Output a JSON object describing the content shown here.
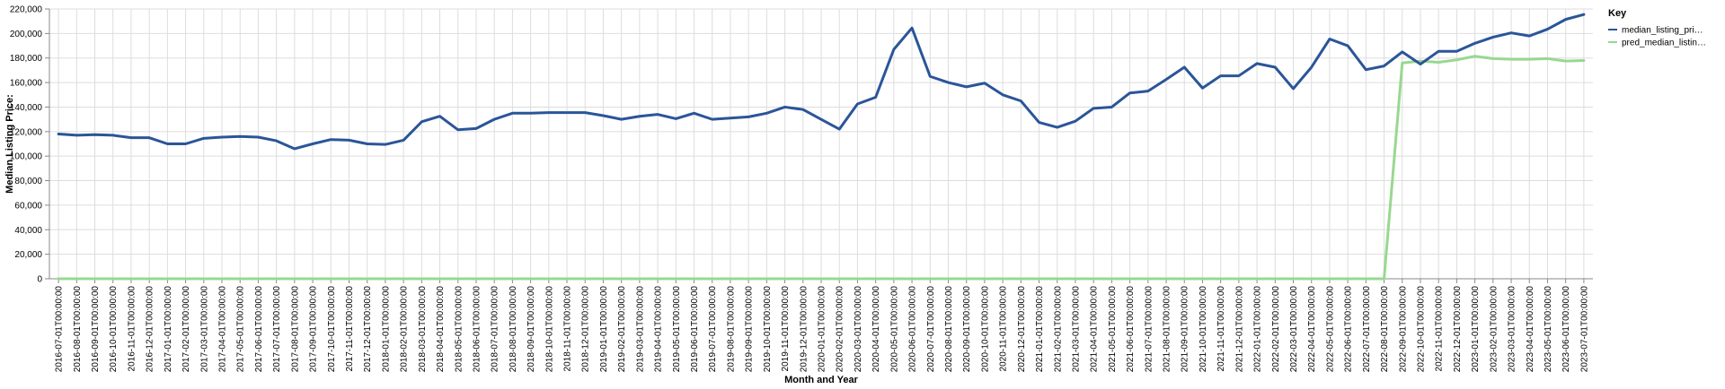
{
  "chart_data": {
    "type": "line",
    "title": "",
    "xlabel": "Month and Year",
    "ylabel": "Median Listing Price:",
    "ylim": [
      0,
      220000
    ],
    "y_ticks": [
      "0",
      "20,000",
      "40,000",
      "60,000",
      "80,000",
      "100,000",
      "120,000",
      "140,000",
      "160,000",
      "180,000",
      "200,000",
      "220,000"
    ],
    "y_tick_values": [
      0,
      20000,
      40000,
      60000,
      80000,
      100000,
      120000,
      140000,
      160000,
      180000,
      200000,
      220000
    ],
    "grid": true,
    "legend": {
      "title": "Key",
      "placement": "right",
      "entries": [
        {
          "label": "median_listing_pri…",
          "color": "#2a5599"
        },
        {
          "label": "pred_median_listin…",
          "color": "#98d891"
        }
      ]
    },
    "categories": [
      "2016-07-01T00:00:00",
      "2016-08-01T00:00:00",
      "2016-09-01T00:00:00",
      "2016-10-01T00:00:00",
      "2016-11-01T00:00:00",
      "2016-12-01T00:00:00",
      "2017-01-01T00:00:00",
      "2017-02-01T00:00:00",
      "2017-03-01T00:00:00",
      "2017-04-01T00:00:00",
      "2017-05-01T00:00:00",
      "2017-06-01T00:00:00",
      "2017-07-01T00:00:00",
      "2017-08-01T00:00:00",
      "2017-09-01T00:00:00",
      "2017-10-01T00:00:00",
      "2017-11-01T00:00:00",
      "2017-12-01T00:00:00",
      "2018-01-01T00:00:00",
      "2018-02-01T00:00:00",
      "2018-03-01T00:00:00",
      "2018-04-01T00:00:00",
      "2018-05-01T00:00:00",
      "2018-06-01T00:00:00",
      "2018-07-01T00:00:00",
      "2018-08-01T00:00:00",
      "2018-09-01T00:00:00",
      "2018-10-01T00:00:00",
      "2018-11-01T00:00:00",
      "2018-12-01T00:00:00",
      "2019-01-01T00:00:00",
      "2019-02-01T00:00:00",
      "2019-03-01T00:00:00",
      "2019-04-01T00:00:00",
      "2019-05-01T00:00:00",
      "2019-06-01T00:00:00",
      "2019-07-01T00:00:00",
      "2019-08-01T00:00:00",
      "2019-09-01T00:00:00",
      "2019-10-01T00:00:00",
      "2019-11-01T00:00:00",
      "2019-12-01T00:00:00",
      "2020-01-01T00:00:00",
      "2020-02-01T00:00:00",
      "2020-03-01T00:00:00",
      "2020-04-01T00:00:00",
      "2020-05-01T00:00:00",
      "2020-06-01T00:00:00",
      "2020-07-01T00:00:00",
      "2020-08-01T00:00:00",
      "2020-09-01T00:00:00",
      "2020-10-01T00:00:00",
      "2020-11-01T00:00:00",
      "2020-12-01T00:00:00",
      "2021-01-01T00:00:00",
      "2021-02-01T00:00:00",
      "2021-03-01T00:00:00",
      "2021-04-01T00:00:00",
      "2021-05-01T00:00:00",
      "2021-06-01T00:00:00",
      "2021-07-01T00:00:00",
      "2021-08-01T00:00:00",
      "2021-09-01T00:00:00",
      "2021-10-01T00:00:00",
      "2021-11-01T00:00:00",
      "2021-12-01T00:00:00",
      "2022-01-01T00:00:00",
      "2022-02-01T00:00:00",
      "2022-03-01T00:00:00",
      "2022-04-01T00:00:00",
      "2022-05-01T00:00:00",
      "2022-06-01T00:00:00",
      "2022-07-01T00:00:00",
      "2022-08-01T00:00:00",
      "2022-09-01T00:00:00",
      "2022-10-01T00:00:00",
      "2022-11-01T00:00:00",
      "2022-12-01T00:00:00",
      "2023-01-01T00:00:00",
      "2023-02-01T00:00:00",
      "2023-03-01T00:00:00",
      "2023-04-01T00:00:00",
      "2023-05-01T00:00:00",
      "2023-06-01T00:00:00",
      "2023-07-01T00:00:00"
    ],
    "series": [
      {
        "name": "median_listing_pri…",
        "color": "#2a5599",
        "values": [
          118000,
          117000,
          117500,
          117000,
          115000,
          115000,
          110000,
          110000,
          114500,
          115500,
          116000,
          115500,
          112500,
          106000,
          110000,
          113500,
          113000,
          110000,
          109500,
          113000,
          128000,
          132500,
          121500,
          122500,
          130000,
          135000,
          135000,
          135500,
          135500,
          135500,
          133000,
          130000,
          132500,
          134000,
          130500,
          135000,
          130000,
          131000,
          132000,
          135000,
          140000,
          138000,
          130000,
          122000,
          142500,
          148000,
          187000,
          204500,
          165000,
          160000,
          156500,
          159500,
          150000,
          145000,
          127500,
          123500,
          128500,
          139000,
          140000,
          151500,
          153000,
          162500,
          172500,
          155500,
          165500,
          165500,
          175500,
          172500,
          155000,
          172500,
          195500,
          190000,
          170500,
          173500,
          185000,
          175000,
          185500,
          185500,
          192000,
          197000,
          200500,
          198000,
          203500,
          211500,
          215500
        ]
      },
      {
        "name": "pred_median_listin…",
        "color": "#98d891",
        "values": [
          0,
          0,
          0,
          0,
          0,
          0,
          0,
          0,
          0,
          0,
          0,
          0,
          0,
          0,
          0,
          0,
          0,
          0,
          0,
          0,
          0,
          0,
          0,
          0,
          0,
          0,
          0,
          0,
          0,
          0,
          0,
          0,
          0,
          0,
          0,
          0,
          0,
          0,
          0,
          0,
          0,
          0,
          0,
          0,
          0,
          0,
          0,
          0,
          0,
          0,
          0,
          0,
          0,
          0,
          0,
          0,
          0,
          0,
          0,
          0,
          0,
          0,
          0,
          0,
          0,
          0,
          0,
          0,
          0,
          0,
          0,
          0,
          0,
          0,
          176000,
          177500,
          176500,
          178500,
          181500,
          179500,
          179000,
          179000,
          179500,
          177500,
          178000
        ]
      }
    ]
  }
}
